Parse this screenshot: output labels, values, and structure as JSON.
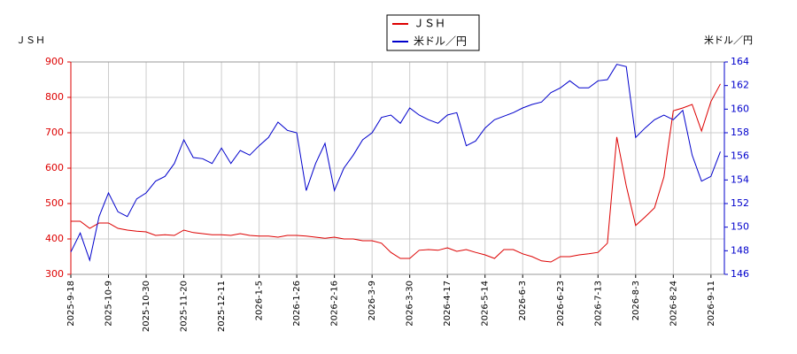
{
  "chart_data": {
    "type": "line",
    "y_label": "ＪＳＨ",
    "y2_label": "米ドル／円",
    "categories": [
      "2025-9-18",
      null,
      null,
      null,
      "2025-10-9",
      null,
      null,
      null,
      "2025-10-30",
      null,
      null,
      null,
      "2025-11-20",
      null,
      null,
      null,
      "2025-12-11",
      null,
      null,
      null,
      "2026-1-5",
      null,
      null,
      null,
      "2026-1-26",
      null,
      null,
      null,
      "2026-2-16",
      null,
      null,
      null,
      "2026-3-9",
      null,
      null,
      null,
      "2026-3-30",
      null,
      null,
      null,
      "2026-4-17",
      null,
      null,
      null,
      "2026-5-14",
      null,
      null,
      null,
      "2026-6-3",
      null,
      null,
      null,
      "2026-6-23",
      null,
      null,
      null,
      "2026-7-13",
      null,
      null,
      null,
      "2026-8-3",
      null,
      null,
      null,
      "2026-8-24",
      null,
      null,
      null,
      "2026-9-11",
      null
    ],
    "series": [
      {
        "name": "ＪＳＨ",
        "color": "#dd0000",
        "axis": "y",
        "values": [
          450,
          450,
          430,
          445,
          445,
          430,
          425,
          422,
          420,
          410,
          412,
          410,
          425,
          418,
          415,
          412,
          412,
          410,
          415,
          410,
          408,
          408,
          405,
          410,
          410,
          408,
          405,
          402,
          405,
          400,
          400,
          395,
          395,
          388,
          362,
          345,
          345,
          368,
          370,
          368,
          375,
          365,
          370,
          362,
          355,
          345,
          370,
          370,
          358,
          350,
          338,
          335,
          350,
          350,
          355,
          358,
          362,
          388,
          688,
          550,
          438,
          462,
          488,
          575,
          762,
          770,
          780,
          705,
          788,
          838
        ]
      },
      {
        "name": "米ドル／円",
        "color": "#0000cc",
        "axis": "y2",
        "values": [
          147.9,
          149.5,
          147.2,
          150.9,
          152.9,
          151.3,
          150.9,
          152.4,
          152.9,
          153.9,
          154.3,
          155.4,
          157.4,
          155.9,
          155.8,
          155.4,
          156.7,
          155.4,
          156.5,
          156.1,
          156.9,
          157.6,
          158.9,
          158.2,
          158.0,
          153.1,
          155.4,
          157.1,
          153.1,
          155.0,
          156.1,
          157.4,
          158.0,
          159.3,
          159.5,
          158.8,
          160.1,
          159.5,
          159.1,
          158.8,
          159.5,
          159.7,
          156.9,
          157.3,
          158.4,
          159.1,
          159.4,
          159.7,
          160.1,
          160.4,
          160.6,
          161.4,
          161.8,
          162.4,
          161.8,
          161.8,
          162.4,
          162.5,
          163.8,
          163.6,
          157.6,
          158.4,
          159.1,
          159.5,
          159.1,
          159.9,
          156.1,
          153.9,
          154.3,
          156.4
        ]
      }
    ],
    "ylim": [
      300,
      900
    ],
    "yticks": [
      300,
      400,
      500,
      600,
      700,
      800,
      900
    ],
    "y2lim": [
      146,
      164
    ],
    "y2ticks": [
      146,
      148,
      150,
      152,
      154,
      156,
      158,
      160,
      162,
      164
    ],
    "grid": true,
    "legend": "top"
  }
}
